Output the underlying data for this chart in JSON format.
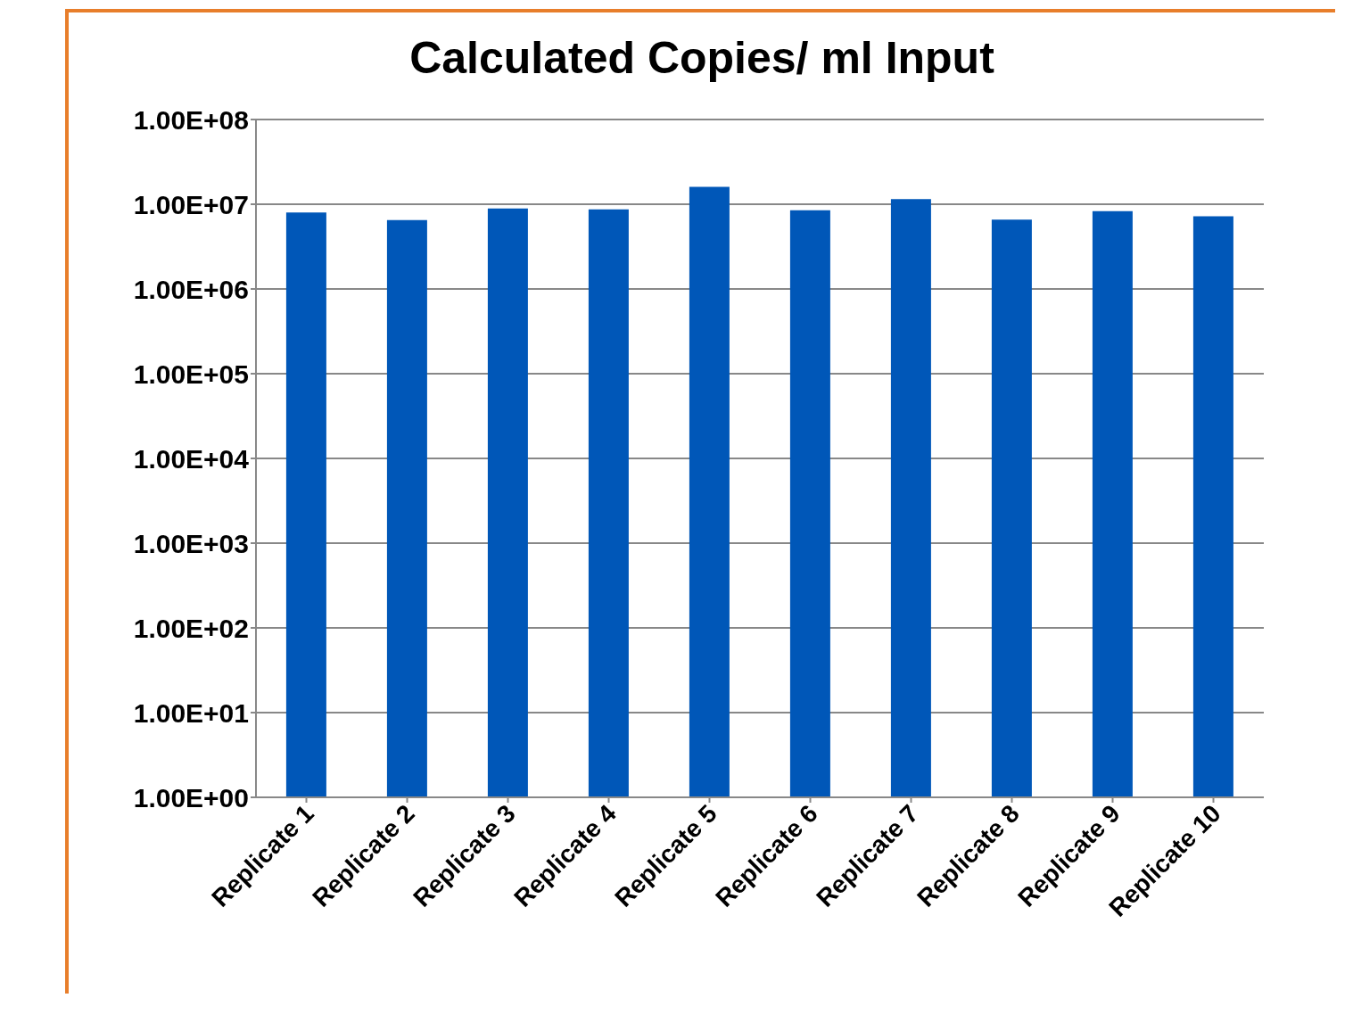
{
  "chart_data": {
    "type": "bar",
    "title": "Calculated Copies/ ml Input",
    "categories": [
      "Replicate 1",
      "Replicate 2",
      "Replicate 3",
      "Replicate 4",
      "Replicate 5",
      "Replicate 6",
      "Replicate 7",
      "Replicate 8",
      "Replicate 9",
      "Replicate 10"
    ],
    "values": [
      8000000,
      6500000,
      8900000,
      8700000,
      16000000,
      8500000,
      11500000,
      6600000,
      8300000,
      7200000
    ],
    "color": "#0057b8",
    "log": true,
    "ylim": [
      1,
      100000000
    ],
    "yticks": [
      {
        "value": 1,
        "label": "1.00E+00"
      },
      {
        "value": 10,
        "label": "1.00E+01"
      },
      {
        "value": 100,
        "label": "1.00E+02"
      },
      {
        "value": 1000,
        "label": "1.00E+03"
      },
      {
        "value": 10000,
        "label": "1.00E+04"
      },
      {
        "value": 100000,
        "label": "1.00E+05"
      },
      {
        "value": 1000000,
        "label": "1.00E+06"
      },
      {
        "value": 10000000,
        "label": "1.00E+07"
      },
      {
        "value": 100000000,
        "label": "1.00E+08"
      }
    ],
    "grid": "y",
    "legend": false
  }
}
